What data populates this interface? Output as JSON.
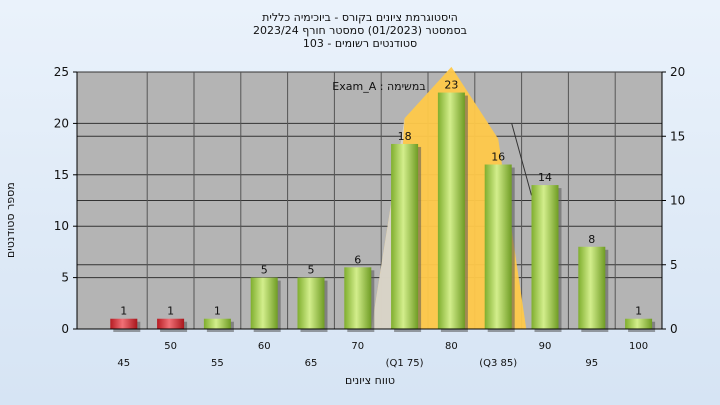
{
  "chart_data": {
    "type": "bar",
    "title_lines": [
      "היסטוגרמת ציונים בקורס - ביוכימיה כללית",
      "בסמסטר  (01/2023)  סמסטר חורף 2023/24",
      "סטודנטים רשומים - 103"
    ],
    "ylabel": "מספר סטודנטים",
    "xlabel": "טווח ציונים",
    "legend_label": "Exam_A : במשימה",
    "categories": [
      "45",
      "50",
      "55",
      "60",
      "65",
      "70",
      "(Q1 75)",
      "80",
      "(Q3 85)",
      "90",
      "95",
      "100"
    ],
    "values": [
      1,
      1,
      1,
      5,
      5,
      6,
      18,
      23,
      16,
      14,
      8,
      1
    ],
    "bar_colors": [
      "#d8282f",
      "#d8282f",
      "#9ccb4a",
      "#9ccb4a",
      "#9ccb4a",
      "#9ccb4a",
      "#9ccb4a",
      "#9ccb4a",
      "#9ccb4a",
      "#9ccb4a",
      "#9ccb4a",
      "#9ccb4a"
    ],
    "ylim_left": [
      0,
      25
    ],
    "left_ticks": [
      0,
      5,
      10,
      15,
      20,
      25
    ],
    "ylim_right": [
      0,
      20
    ],
    "right_ticks": [
      0,
      5,
      10,
      15,
      20
    ],
    "shaded_range": {
      "from_category": "(Q1 75)",
      "to_category": "(Q3 85)",
      "color": "#ffc94a"
    },
    "grid": true
  }
}
